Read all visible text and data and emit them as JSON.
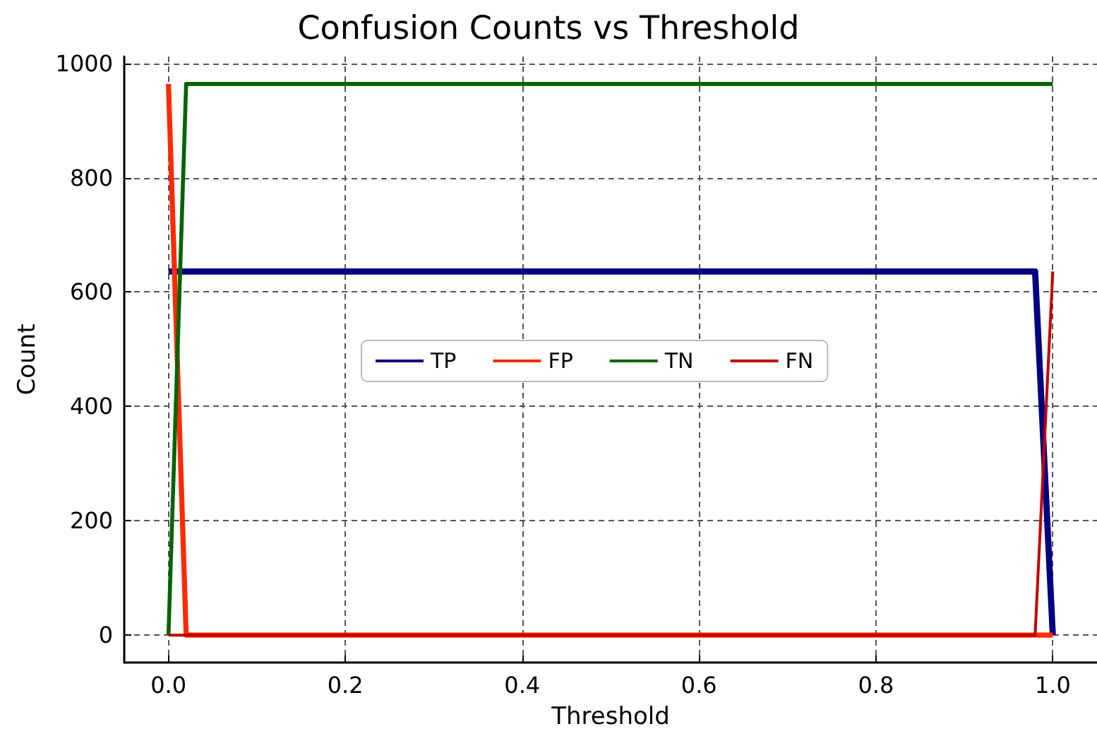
{
  "chart_data": {
    "type": "line",
    "title": "Confusion Counts vs Threshold",
    "xlabel": "Threshold",
    "ylabel": "Count",
    "series": [
      {
        "name": "TP",
        "color": "#000080",
        "x": [
          0,
          0.98,
          1
        ],
        "values": [
          636,
          636,
          0
        ]
      },
      {
        "name": "FP",
        "color": "#ff2a00",
        "x": [
          0,
          0.02,
          1
        ],
        "values": [
          964,
          0,
          0
        ]
      },
      {
        "name": "TN",
        "color": "#006400",
        "x": [
          0,
          0.02,
          1
        ],
        "values": [
          0,
          964,
          964
        ]
      },
      {
        "name": "FN",
        "color": "#c00000",
        "x": [
          0,
          0.98,
          1
        ],
        "values": [
          0,
          0,
          636
        ]
      }
    ],
    "xlim": [
      -0.05,
      1.05
    ],
    "xticks": [
      {
        "value": 0,
        "label": "0.0"
      },
      {
        "value": 0.2,
        "label": "0.2"
      },
      {
        "value": 0.4,
        "label": "0.4"
      },
      {
        "value": 0.6,
        "label": "0.6"
      },
      {
        "value": 0.8,
        "label": "0.8"
      },
      {
        "value": 1,
        "label": "1.0"
      }
    ],
    "ylim": [
      -48,
      1012
    ],
    "yticks": [
      0,
      200,
      400,
      600,
      800,
      1000
    ],
    "grid": true,
    "legend": "center",
    "marker": "none",
    "line_style": "solid"
  }
}
